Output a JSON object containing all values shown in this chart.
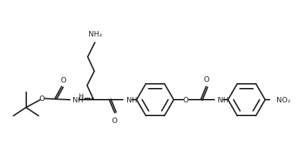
{
  "background_color": "#ffffff",
  "line_color": "#222222",
  "line_width": 1.4,
  "font_size": 7.5,
  "figsize": [
    4.35,
    2.28
  ],
  "dpi": 100,
  "xlim": [
    0,
    10
  ],
  "ylim": [
    0,
    5.2
  ]
}
